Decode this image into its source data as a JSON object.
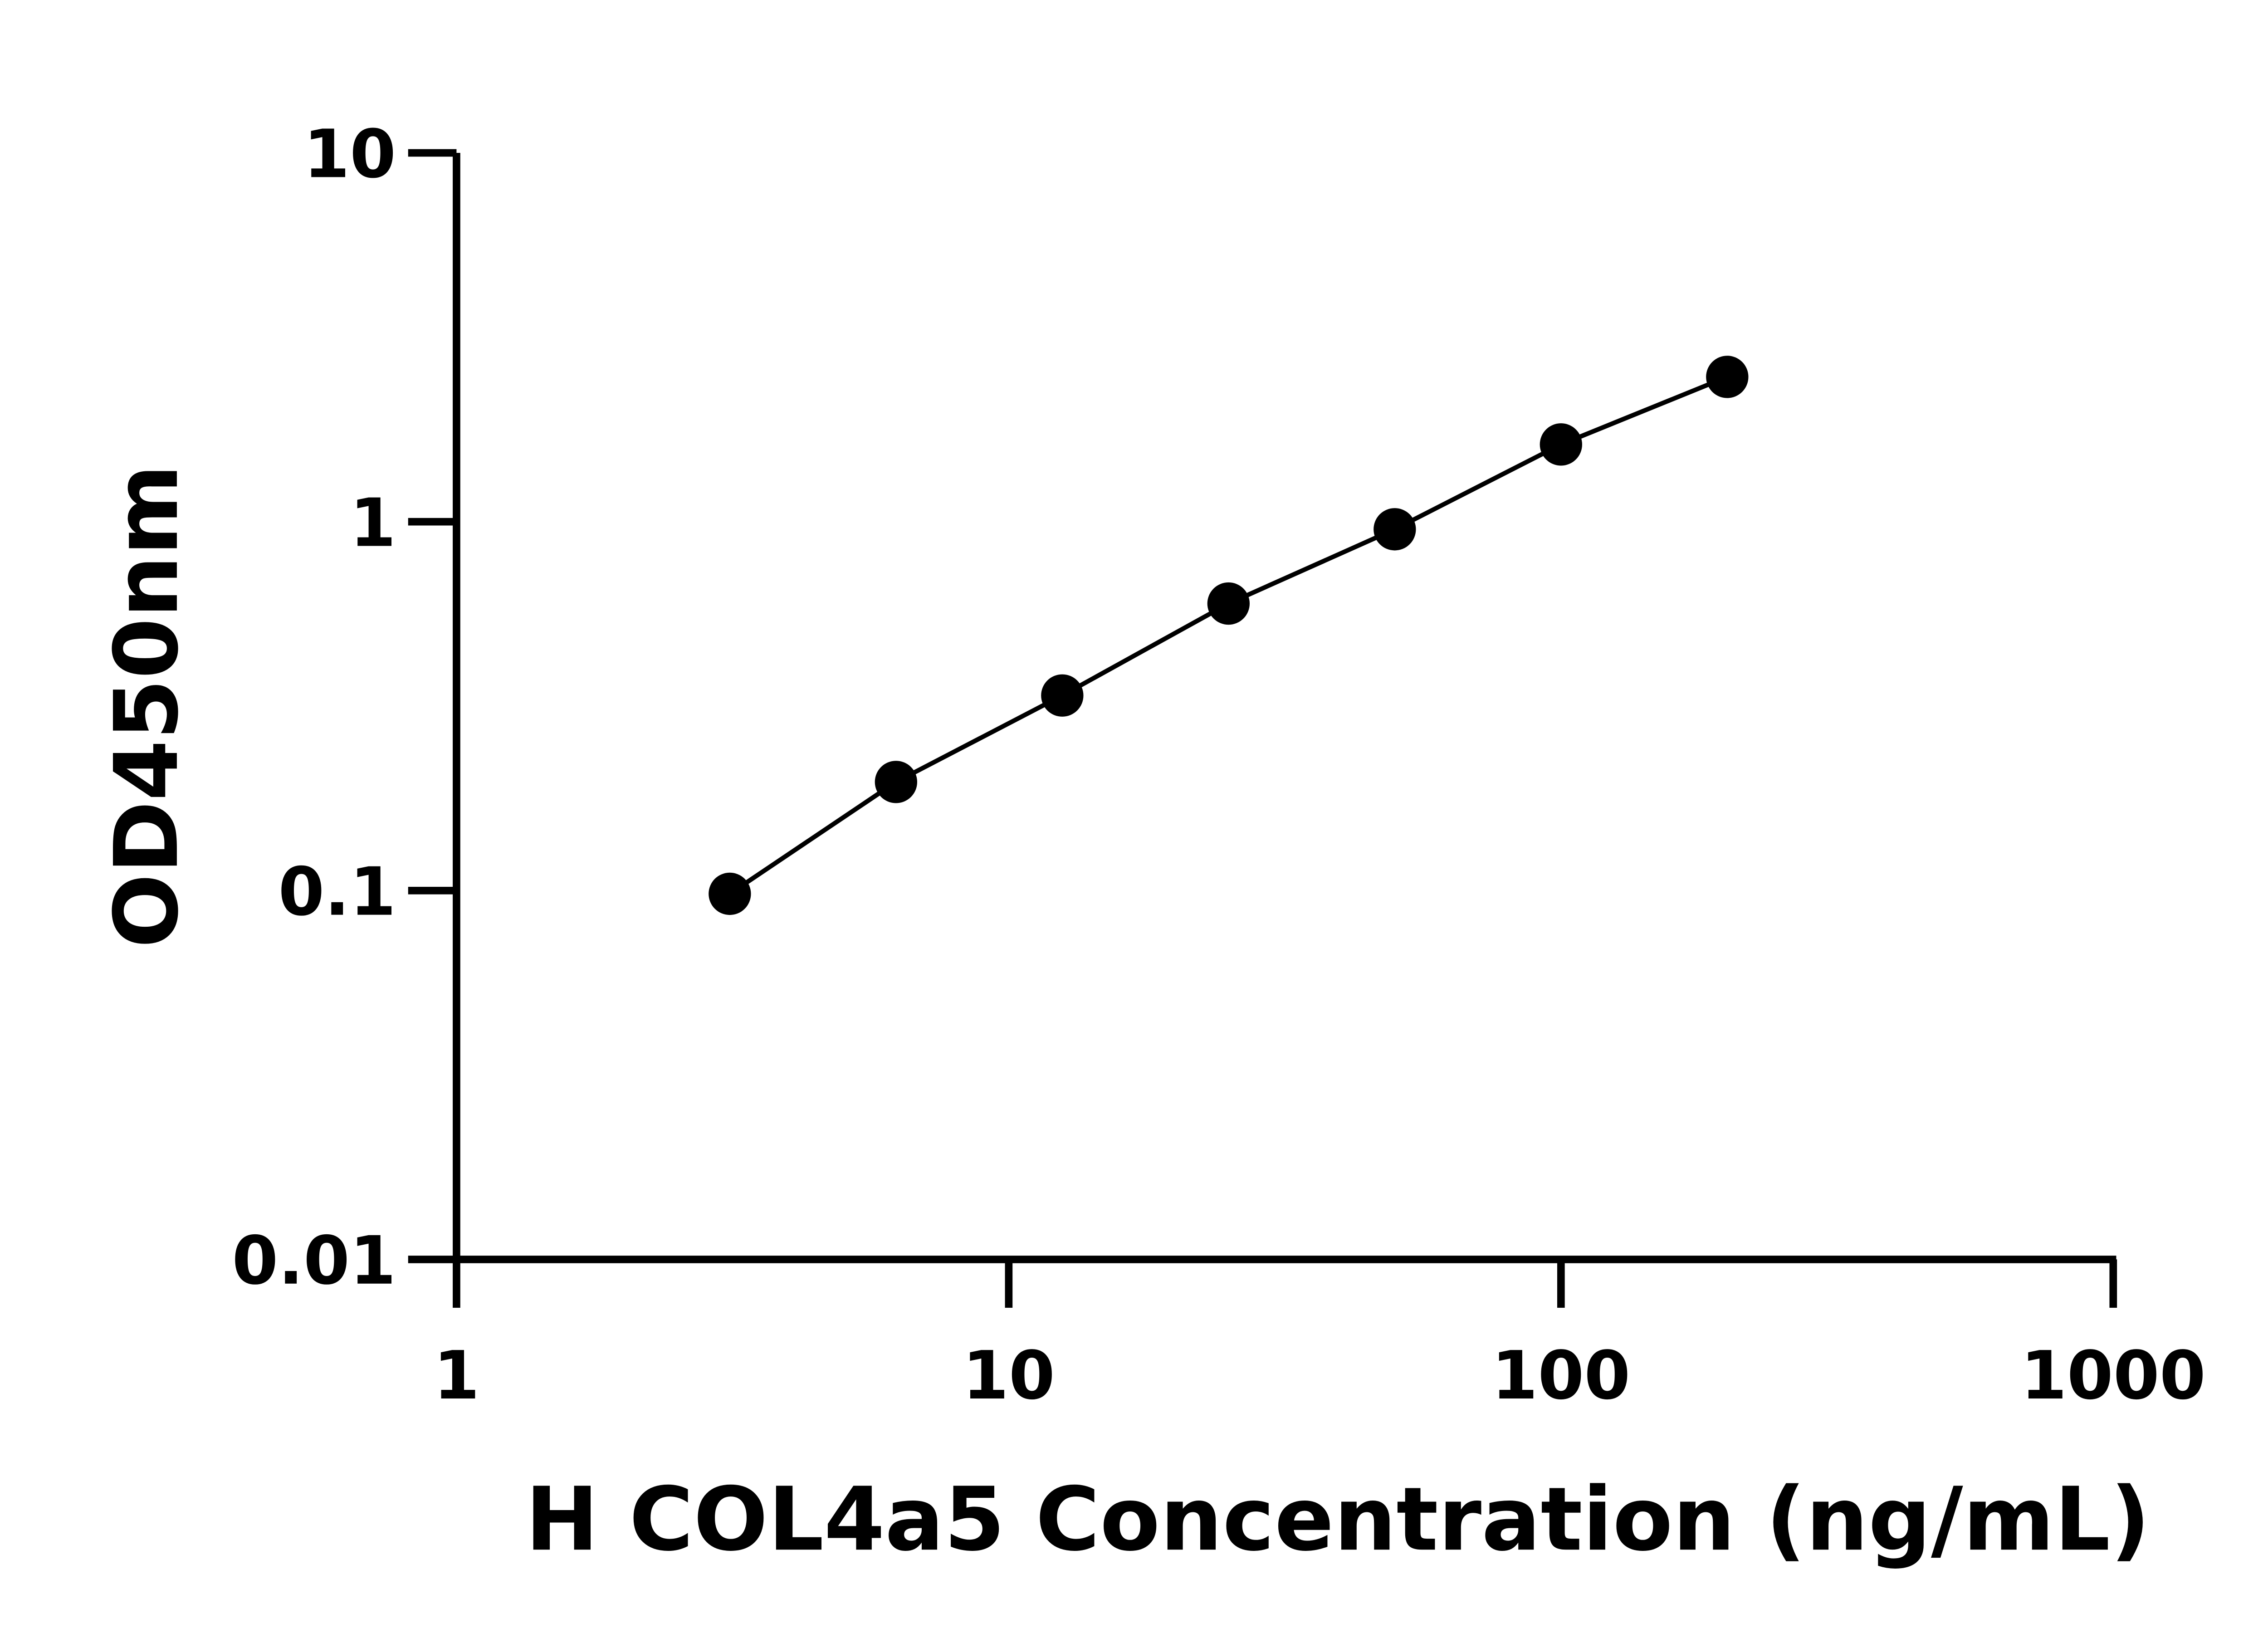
{
  "chart_data": {
    "type": "line",
    "title": "",
    "xlabel": "H COL4a5 Concentration (ng/mL)",
    "ylabel": "OD450nm",
    "x_scale": "log",
    "y_scale": "log",
    "xlim": [
      1,
      1000
    ],
    "ylim": [
      0.01,
      10
    ],
    "x_ticks": [
      "1",
      "10",
      "100",
      "1000"
    ],
    "y_ticks": [
      "0.01",
      "0.1",
      "1",
      "10"
    ],
    "grid": false,
    "legend": "none",
    "series": [
      {
        "x": [
          3.125,
          6.25,
          12.5,
          25,
          50,
          100,
          200
        ],
        "y": [
          0.098,
          0.197,
          0.338,
          0.6,
          0.954,
          1.62,
          2.47
        ],
        "color": "#000000",
        "marker": "circle"
      }
    ]
  }
}
